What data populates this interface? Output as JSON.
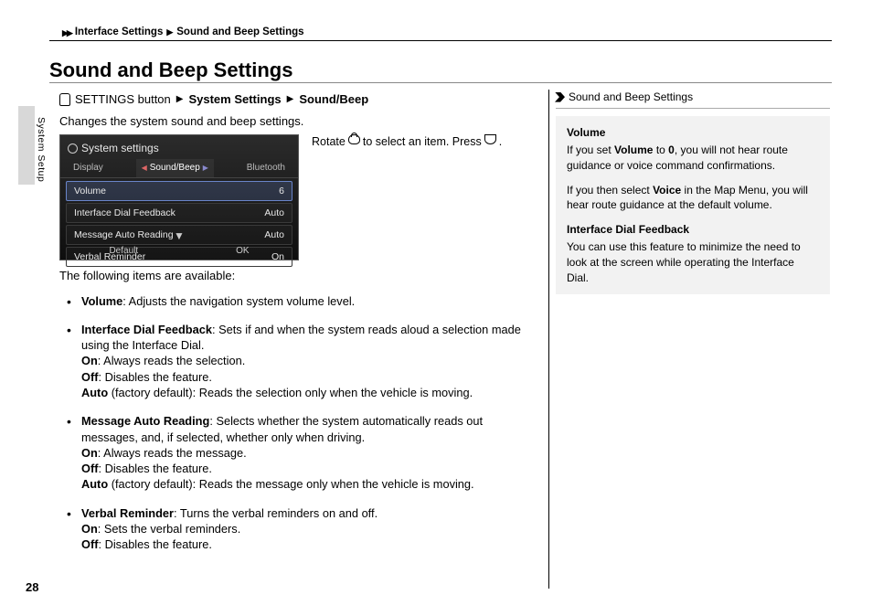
{
  "breadcrumb": {
    "level1": "Interface Settings",
    "level2": "Sound and Beep Settings"
  },
  "page_title": "Sound and Beep Settings",
  "side_label": "System Setup",
  "nav_path": {
    "button": "SETTINGS button",
    "step1": "System Settings",
    "step2": "Sound/Beep"
  },
  "intro": "Changes the system sound and beep settings.",
  "rotate_instruction": {
    "pre": "Rotate",
    "mid": "to select an item. Press",
    "post": "."
  },
  "screenshot": {
    "title": "System settings",
    "tabs": {
      "left": "Display",
      "center": "Sound/Beep",
      "right": "Bluetooth"
    },
    "rows": [
      {
        "label": "Volume",
        "value": "6",
        "selected": true
      },
      {
        "label": "Interface Dial Feedback",
        "value": "Auto",
        "selected": false
      },
      {
        "label": "Message Auto Reading",
        "value": "Auto",
        "selected": false
      },
      {
        "label": "Verbal Reminder",
        "value": "On",
        "selected": false
      }
    ],
    "footer": {
      "left": "Default",
      "right": "OK"
    }
  },
  "items_intro": "The following items are available:",
  "items": {
    "volume": {
      "name": "Volume",
      "desc": ": Adjusts the navigation system volume level."
    },
    "idf": {
      "name": "Interface Dial Feedback",
      "desc": ": Sets if and when the system reads aloud a selection made using the Interface Dial.",
      "on_label": "On",
      "on_text": ": Always reads the selection.",
      "off_label": "Off",
      "off_text": ": Disables the feature.",
      "auto_label": "Auto",
      "auto_text": " (factory default): Reads the selection only when the vehicle is moving."
    },
    "mar": {
      "name": "Message Auto Reading",
      "desc": ": Selects whether the system automatically reads out messages, and, if selected, whether only when driving.",
      "on_label": "On",
      "on_text": ": Always reads the message.",
      "off_label": "Off",
      "off_text": ": Disables the feature.",
      "auto_label": "Auto",
      "auto_text": " (factory default): Reads the message only when the vehicle is moving."
    },
    "vr": {
      "name": "Verbal Reminder",
      "desc": ": Turns the verbal reminders on and off.",
      "on_label": "On",
      "on_text": ": Sets the verbal reminders.",
      "off_label": "Off",
      "off_text": ": Disables the feature."
    }
  },
  "sidebar": {
    "title": "Sound and Beep Settings",
    "volume_hdr": "Volume",
    "volume_p1a": "If you set ",
    "volume_p1b": "Volume",
    "volume_p1c": " to ",
    "volume_p1d": "0",
    "volume_p1e": ", you will not hear route guidance or voice command confirmations.",
    "volume_p2a": "If you then select ",
    "volume_p2b": "Voice",
    "volume_p2c": " in the Map Menu, you will hear route guidance at the default volume.",
    "idf_hdr": "Interface Dial Feedback",
    "idf_p": "You can use this feature to minimize the need to look at the screen while operating the Interface Dial."
  },
  "page_number": "28"
}
